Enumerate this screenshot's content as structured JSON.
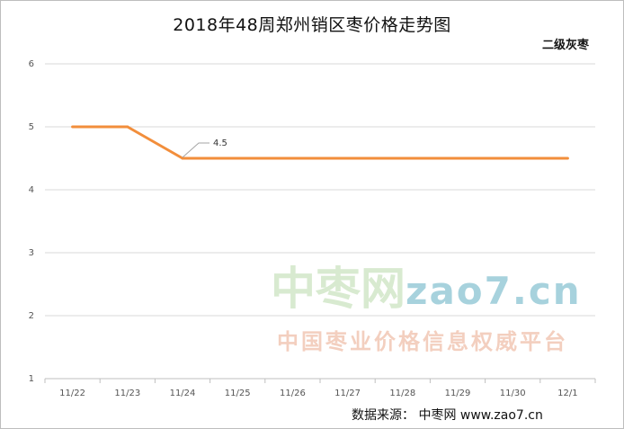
{
  "chart_data": {
    "type": "line",
    "title": "2018年48周郑州销区枣价格走势图",
    "series_label": "二级灰枣",
    "categories": [
      "11/22",
      "11/23",
      "11/24",
      "11/25",
      "11/26",
      "11/27",
      "11/28",
      "11/29",
      "11/30",
      "12/1"
    ],
    "series": [
      {
        "name": "二级灰枣",
        "values": [
          5,
          5,
          4.5,
          4.5,
          4.5,
          4.5,
          4.5,
          4.5,
          4.5,
          4.5
        ],
        "color": "#f28e3b"
      }
    ],
    "yticks": [
      1,
      2,
      3,
      4,
      5,
      6
    ],
    "ylim": [
      1,
      6
    ],
    "grid": true,
    "data_labels": [
      {
        "index": 2,
        "text": "4.5"
      }
    ]
  },
  "watermark": {
    "zh": "中枣网",
    "en": "zao7.cn",
    "sub": "中国枣业价格信息权威平台"
  },
  "source_text": "数据来源：   中枣网 www.zao7.cn",
  "colors": {
    "line": "#f28e3b",
    "grid": "#d9d9d9",
    "axis": "#bfbfbf"
  }
}
